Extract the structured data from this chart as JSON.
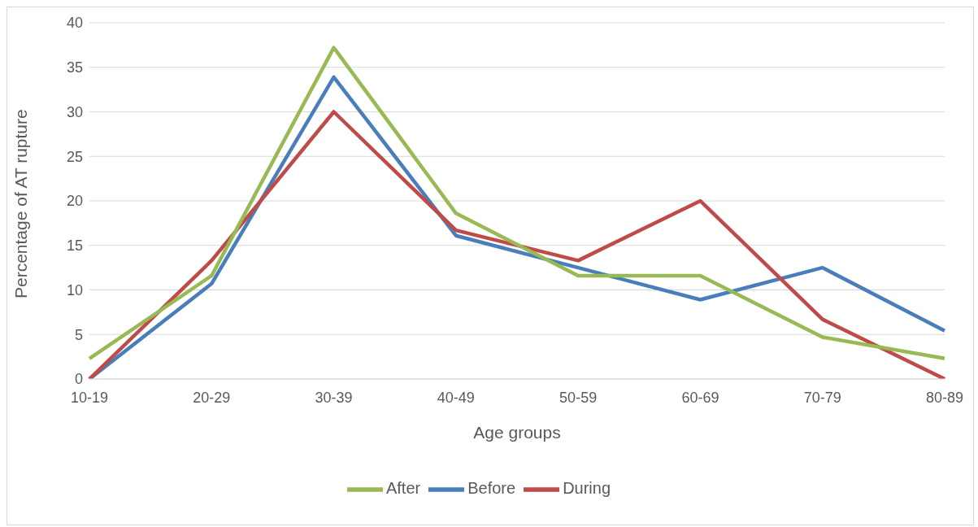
{
  "chart_data": {
    "type": "line",
    "xlabel": "Age groups",
    "ylabel": "Percentage of AT rupture",
    "categories": [
      "10-19",
      "20-29",
      "30-39",
      "40-49",
      "50-59",
      "60-69",
      "70-79",
      "80-89"
    ],
    "series": [
      {
        "name": "Before",
        "color": "#4a7ebb",
        "values": [
          0,
          10.7,
          33.9,
          16.1,
          12.5,
          8.9,
          12.5,
          5.4
        ]
      },
      {
        "name": "During",
        "color": "#be4b48",
        "values": [
          0,
          13.3,
          30,
          16.7,
          13.3,
          20,
          6.7,
          0
        ]
      },
      {
        "name": "After",
        "color": "#98b954",
        "values": [
          2.3,
          11.6,
          37.2,
          18.6,
          11.6,
          11.6,
          4.7,
          2.3
        ]
      }
    ],
    "ylim": [
      0,
      40
    ],
    "yticks": [
      0,
      5,
      10,
      15,
      20,
      25,
      30,
      35,
      40
    ],
    "grid": "y",
    "legend": "bottom",
    "marker": "none",
    "line_style": "solid"
  }
}
